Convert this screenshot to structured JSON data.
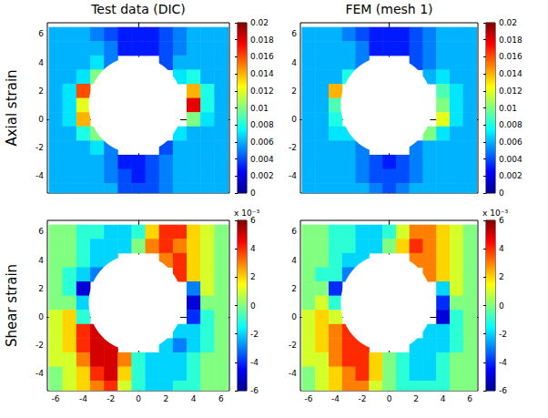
{
  "chart_data": [
    {
      "type": "heatmap",
      "title": "Test data (DIC)",
      "ylabel": "Axial strain",
      "tick_labels": "y",
      "x": [
        -6,
        -5,
        -4,
        -3,
        -2,
        -1,
        0,
        1,
        2,
        3,
        4,
        5,
        6
      ],
      "y": [
        6,
        5,
        4,
        3,
        2,
        1,
        0,
        -1,
        -2,
        -3,
        -4,
        -5
      ],
      "cells": [
        [
          0.006,
          0.006,
          0.006,
          0.005,
          0.004,
          0.003,
          0.003,
          0.003,
          0.004,
          0.005,
          0.006,
          0.006,
          0.006
        ],
        [
          0.006,
          0.006,
          0.006,
          0.006,
          0.005,
          0.003,
          0.003,
          0.003,
          0.004,
          0.005,
          0.006,
          0.006,
          0.006
        ],
        [
          0.006,
          0.006,
          0.006,
          0.007,
          0.005,
          null,
          null,
          null,
          0.004,
          0.006,
          0.006,
          0.006,
          0.006
        ],
        [
          0.006,
          0.006,
          0.007,
          0.01,
          null,
          null,
          null,
          null,
          null,
          0.007,
          0.008,
          0.006,
          0.006
        ],
        [
          0.006,
          0.007,
          0.016,
          null,
          null,
          null,
          null,
          null,
          null,
          null,
          0.014,
          0.008,
          0.006
        ],
        [
          0.006,
          0.007,
          0.012,
          null,
          null,
          null,
          null,
          null,
          null,
          null,
          0.018,
          0.008,
          0.006
        ],
        [
          0.006,
          0.007,
          0.014,
          null,
          null,
          null,
          null,
          null,
          null,
          null,
          0.01,
          0.007,
          0.006
        ],
        [
          0.006,
          0.006,
          0.008,
          0.01,
          null,
          null,
          null,
          null,
          null,
          0.007,
          0.006,
          0.006,
          0.006
        ],
        [
          0.006,
          0.006,
          0.006,
          0.007,
          0.005,
          null,
          null,
          null,
          0.004,
          0.006,
          0.006,
          0.006,
          0.006
        ],
        [
          0.006,
          0.006,
          0.006,
          0.006,
          0.005,
          0.003,
          0.003,
          0.004,
          0.005,
          0.006,
          0.006,
          0.006,
          0.006
        ],
        [
          0.006,
          0.006,
          0.006,
          0.006,
          0.005,
          0.004,
          0.003,
          0.004,
          0.005,
          0.006,
          0.006,
          0.006,
          0.006
        ],
        [
          0.006,
          0.006,
          0.006,
          0.006,
          0.006,
          0.004,
          0.004,
          0.004,
          0.005,
          0.006,
          0.006,
          0.006,
          0.006
        ]
      ],
      "hole": {
        "center": [
          -0.2,
          1.0
        ],
        "radius": 3.4
      },
      "xlim": [
        -6.6,
        6.6
      ],
      "ylim": [
        -5.2,
        6.8
      ],
      "xticks": [
        -6,
        -4,
        -2,
        0,
        2,
        4,
        6
      ],
      "yticks": [
        -4,
        -2,
        0,
        2,
        4,
        6
      ],
      "colorbar": {
        "range": [
          0,
          0.02
        ],
        "ticks": [
          0,
          0.002,
          0.004,
          0.006,
          0.008,
          0.01,
          0.012,
          0.014,
          0.016,
          0.018,
          0.02
        ]
      }
    },
    {
      "type": "heatmap",
      "title": "FEM (mesh 1)",
      "tick_labels": "y",
      "x": [
        -6,
        -5,
        -4,
        -3,
        -2,
        -1,
        0,
        1,
        2,
        3,
        4,
        5,
        6
      ],
      "y": [
        6,
        5,
        4,
        3,
        2,
        1,
        0,
        -1,
        -2,
        -3,
        -4,
        -5
      ],
      "cells": [
        [
          0.006,
          0.006,
          0.006,
          0.005,
          0.004,
          0.003,
          0.003,
          0.003,
          0.004,
          0.005,
          0.006,
          0.006,
          0.006
        ],
        [
          0.006,
          0.006,
          0.006,
          0.006,
          0.005,
          0.003,
          0.003,
          0.003,
          0.004,
          0.005,
          0.006,
          0.006,
          0.006
        ],
        [
          0.006,
          0.006,
          0.006,
          0.006,
          0.005,
          null,
          null,
          null,
          0.004,
          0.005,
          0.006,
          0.006,
          0.006
        ],
        [
          0.006,
          0.006,
          0.006,
          0.008,
          null,
          null,
          null,
          null,
          null,
          0.006,
          0.007,
          0.006,
          0.006
        ],
        [
          0.006,
          0.006,
          0.014,
          null,
          null,
          null,
          null,
          null,
          null,
          null,
          0.009,
          0.007,
          0.006
        ],
        [
          0.006,
          0.006,
          0.009,
          null,
          null,
          null,
          null,
          null,
          null,
          null,
          0.01,
          0.007,
          0.006
        ],
        [
          0.006,
          0.006,
          0.008,
          null,
          null,
          null,
          null,
          null,
          null,
          null,
          0.012,
          0.007,
          0.006
        ],
        [
          0.006,
          0.006,
          0.007,
          0.007,
          null,
          null,
          null,
          null,
          null,
          0.01,
          0.007,
          0.006,
          0.006
        ],
        [
          0.006,
          0.006,
          0.006,
          0.006,
          0.005,
          null,
          null,
          null,
          0.005,
          0.006,
          0.006,
          0.006,
          0.006
        ],
        [
          0.006,
          0.006,
          0.006,
          0.006,
          0.005,
          0.004,
          0.003,
          0.004,
          0.005,
          0.006,
          0.006,
          0.006,
          0.006
        ],
        [
          0.006,
          0.006,
          0.006,
          0.006,
          0.005,
          0.004,
          0.004,
          0.004,
          0.005,
          0.006,
          0.006,
          0.006,
          0.006
        ],
        [
          0.006,
          0.006,
          0.006,
          0.006,
          0.006,
          0.005,
          0.004,
          0.005,
          0.006,
          0.006,
          0.006,
          0.006,
          0.006
        ]
      ],
      "hole": {
        "center": [
          -0.2,
          1.0
        ],
        "radius": 3.4
      },
      "xlim": [
        -6.6,
        6.6
      ],
      "ylim": [
        -5.2,
        6.8
      ],
      "xticks": [
        -6,
        -4,
        -2,
        0,
        2,
        4,
        6
      ],
      "yticks": [
        -4,
        -2,
        0,
        2,
        4,
        6
      ],
      "colorbar": {
        "range": [
          0,
          0.02
        ],
        "ticks": [
          0,
          0.002,
          0.004,
          0.006,
          0.008,
          0.01,
          0.012,
          0.014,
          0.016,
          0.018,
          0.02
        ]
      }
    },
    {
      "type": "heatmap",
      "ylabel": "Shear strain",
      "tick_labels": true,
      "x": [
        -6,
        -5,
        -4,
        -3,
        -2,
        -1,
        0,
        1,
        2,
        3,
        4,
        5,
        6
      ],
      "y": [
        6,
        5,
        4,
        3,
        2,
        1,
        0,
        -1,
        -2,
        -3,
        -4,
        -5
      ],
      "cells": [
        [
          0,
          0,
          -1,
          -1,
          -2,
          -2,
          -1,
          2,
          4,
          4,
          2,
          1,
          0
        ],
        [
          0,
          0,
          -1,
          -2,
          -2,
          -2,
          0,
          3,
          4,
          3,
          2,
          1,
          0
        ],
        [
          0,
          0,
          -1,
          -2,
          -2,
          null,
          null,
          null,
          3,
          4,
          2,
          1,
          0
        ],
        [
          0,
          -1,
          -2,
          -3,
          null,
          null,
          null,
          null,
          null,
          4,
          2,
          1,
          0
        ],
        [
          0,
          -1,
          -5,
          null,
          null,
          null,
          null,
          null,
          null,
          null,
          -3,
          1,
          0
        ],
        [
          0,
          0,
          -2,
          null,
          null,
          null,
          null,
          null,
          null,
          null,
          -5,
          0,
          0
        ],
        [
          1,
          2,
          -1,
          null,
          null,
          null,
          null,
          null,
          null,
          null,
          -4,
          -1,
          0
        ],
        [
          1,
          2,
          4,
          5,
          null,
          null,
          null,
          null,
          null,
          -2,
          -2,
          -1,
          0
        ],
        [
          1,
          2,
          4,
          5,
          5,
          null,
          null,
          null,
          -2,
          -3,
          -2,
          -1,
          0
        ],
        [
          1,
          1,
          3,
          5,
          5,
          3,
          -1,
          -2,
          -2,
          -2,
          -1,
          0,
          0
        ],
        [
          0,
          1,
          2,
          4,
          5,
          2,
          -1,
          -2,
          -2,
          -2,
          -1,
          0,
          0
        ],
        [
          0,
          1,
          2,
          3,
          4,
          1,
          -1,
          -2,
          -2,
          -1,
          -1,
          0,
          0
        ]
      ],
      "hole": {
        "center": [
          -0.2,
          1.0
        ],
        "radius": 3.4
      },
      "xlim": [
        -6.6,
        6.6
      ],
      "ylim": [
        -5.2,
        6.8
      ],
      "xticks": [
        -6,
        -4,
        -2,
        0,
        2,
        4,
        6
      ],
      "yticks": [
        -4,
        -2,
        0,
        2,
        4,
        6
      ],
      "colorbar": {
        "range": [
          -6,
          6
        ],
        "ticks": [
          -6,
          -4,
          -2,
          0,
          2,
          4,
          6
        ],
        "label": "x 10⁻³"
      }
    },
    {
      "type": "heatmap",
      "tick_labels": true,
      "x": [
        -6,
        -5,
        -4,
        -3,
        -2,
        -1,
        0,
        1,
        2,
        3,
        4,
        5,
        6
      ],
      "y": [
        6,
        5,
        4,
        3,
        2,
        1,
        0,
        -1,
        -2,
        -3,
        -4,
        -5
      ],
      "cells": [
        [
          0,
          0,
          -1,
          -1,
          -2,
          -2,
          -1,
          1,
          3,
          3,
          2,
          1,
          0
        ],
        [
          0,
          0,
          -1,
          -1,
          -2,
          -2,
          0,
          2,
          4,
          3,
          2,
          1,
          0
        ],
        [
          0,
          0,
          -1,
          -2,
          -2,
          null,
          null,
          null,
          3,
          3,
          2,
          1,
          0
        ],
        [
          0,
          -1,
          -1,
          -3,
          null,
          null,
          null,
          null,
          null,
          3,
          2,
          1,
          0
        ],
        [
          0,
          0,
          -4,
          null,
          null,
          null,
          null,
          null,
          null,
          null,
          -2,
          1,
          0
        ],
        [
          0,
          1,
          -1,
          null,
          null,
          null,
          null,
          null,
          null,
          null,
          -4,
          0,
          0
        ],
        [
          1,
          2,
          1,
          null,
          null,
          null,
          null,
          null,
          null,
          null,
          -5,
          -1,
          0
        ],
        [
          1,
          2,
          3,
          4,
          null,
          null,
          null,
          null,
          null,
          -2,
          -2,
          -1,
          0
        ],
        [
          1,
          2,
          3,
          4,
          4,
          null,
          null,
          null,
          -2,
          -2,
          -2,
          -1,
          0
        ],
        [
          1,
          1,
          3,
          4,
          4,
          2,
          0,
          -1,
          -2,
          -2,
          -1,
          0,
          0
        ],
        [
          0,
          1,
          2,
          3,
          4,
          2,
          0,
          -1,
          -2,
          -2,
          -1,
          0,
          0
        ],
        [
          0,
          1,
          2,
          3,
          3,
          1,
          0,
          -1,
          -1,
          -1,
          -1,
          0,
          0
        ]
      ],
      "hole": {
        "center": [
          -0.2,
          1.0
        ],
        "radius": 3.4
      },
      "xlim": [
        -6.6,
        6.6
      ],
      "ylim": [
        -5.2,
        6.8
      ],
      "xticks": [
        -6,
        -4,
        -2,
        0,
        2,
        4,
        6
      ],
      "yticks": [
        -4,
        -2,
        0,
        2,
        4,
        6
      ],
      "colorbar": {
        "range": [
          -6,
          6
        ],
        "ticks": [
          -6,
          -4,
          -2,
          0,
          2,
          4,
          6
        ],
        "label": "x 10⁻³"
      }
    }
  ]
}
